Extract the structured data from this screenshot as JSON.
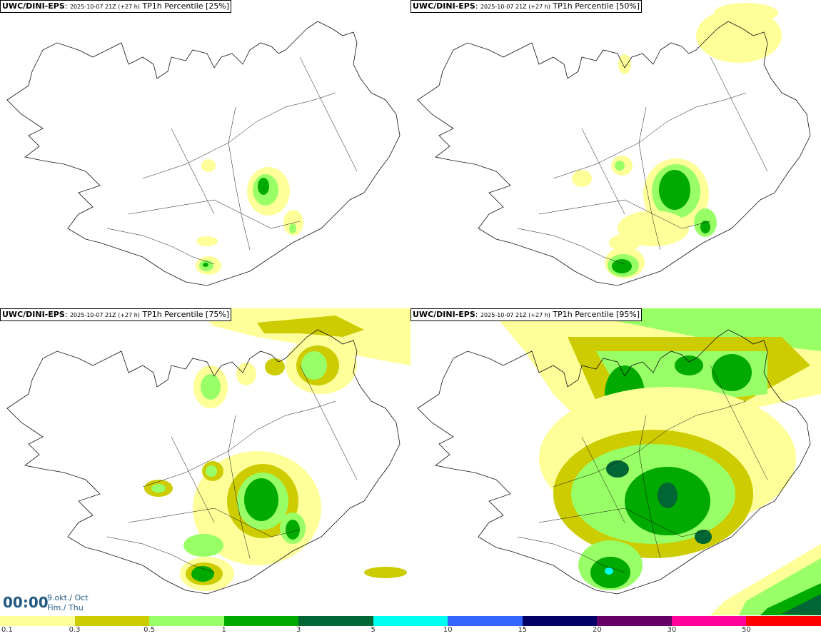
{
  "panels": [
    {
      "model": "UWC/DINI-EPS",
      "date": "2025-10-07 21Z (+27 h)",
      "field": "TP1h Percentile [25%]"
    },
    {
      "model": "UWC/DINI-EPS",
      "date": "2025-10-07 21Z (+27 h)",
      "field": "TP1h Percentile [50%]"
    },
    {
      "model": "UWC/DINI-EPS",
      "date": "2025-10-07 21Z (+27 h)",
      "field": "TP1h Percentile [75%]"
    },
    {
      "model": "UWC/DINI-EPS",
      "date": "2025-10-07 21Z (+27 h)",
      "field": "TP1h Percentile [95%]"
    }
  ],
  "valid_time": {
    "time": "00:00",
    "date": "9.okt./ Oct",
    "day": "Fim./ Thu"
  },
  "legend": {
    "labels": [
      "0.1",
      "0.3",
      "0.5",
      "1",
      "3",
      "5",
      "10",
      "15",
      "20",
      "30",
      "50"
    ],
    "colors": [
      "#ffff99",
      "#cccc00",
      "#99ff66",
      "#00aa00",
      "#006633",
      "#00ffee",
      "#3366ff",
      "#000066",
      "#660066",
      "#ff0099",
      "#ff0000"
    ]
  },
  "colors": {
    "p01": "#ffff99",
    "p03": "#cccc00",
    "p05": "#99ff66",
    "p1": "#00aa00",
    "p3": "#006633",
    "p5": "#00ffee"
  }
}
